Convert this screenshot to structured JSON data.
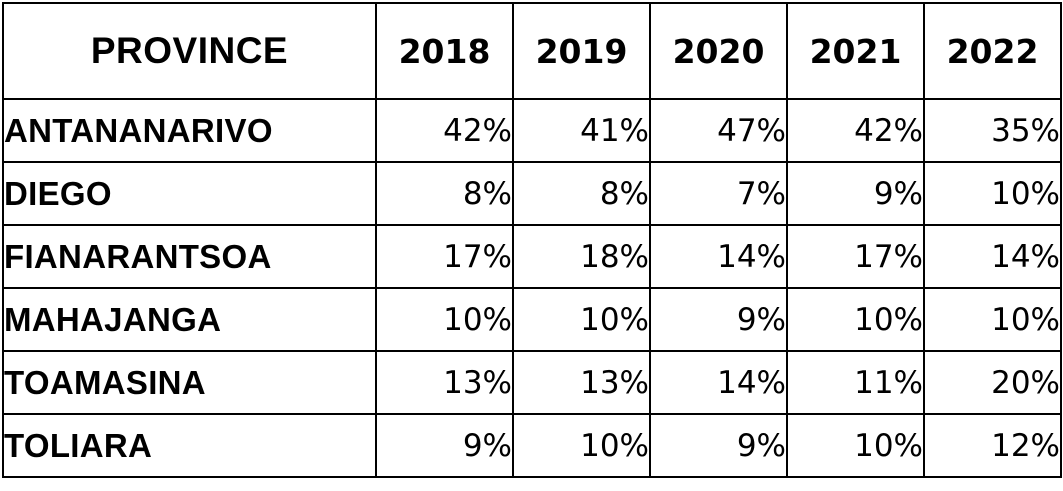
{
  "table": {
    "header": {
      "province": "PROVINCE",
      "years": [
        "2018",
        "2019",
        "2020",
        "2021",
        "2022"
      ]
    },
    "rows": [
      {
        "province": "ANTANANARIVO",
        "values": [
          "42%",
          "41%",
          "47%",
          "42%",
          "35%"
        ]
      },
      {
        "province": "DIEGO",
        "values": [
          "8%",
          "8%",
          "7%",
          "9%",
          "10%"
        ]
      },
      {
        "province": "FIANARANTSOA",
        "values": [
          "17%",
          "18%",
          "14%",
          "17%",
          "14%"
        ]
      },
      {
        "province": "MAHAJANGA",
        "values": [
          "10%",
          "10%",
          "9%",
          "10%",
          "10%"
        ]
      },
      {
        "province": "TOAMASINA",
        "values": [
          "13%",
          "13%",
          "14%",
          "11%",
          "20%"
        ]
      },
      {
        "province": "TOLIARA",
        "values": [
          "9%",
          "10%",
          "9%",
          "10%",
          "12%"
        ]
      }
    ]
  }
}
